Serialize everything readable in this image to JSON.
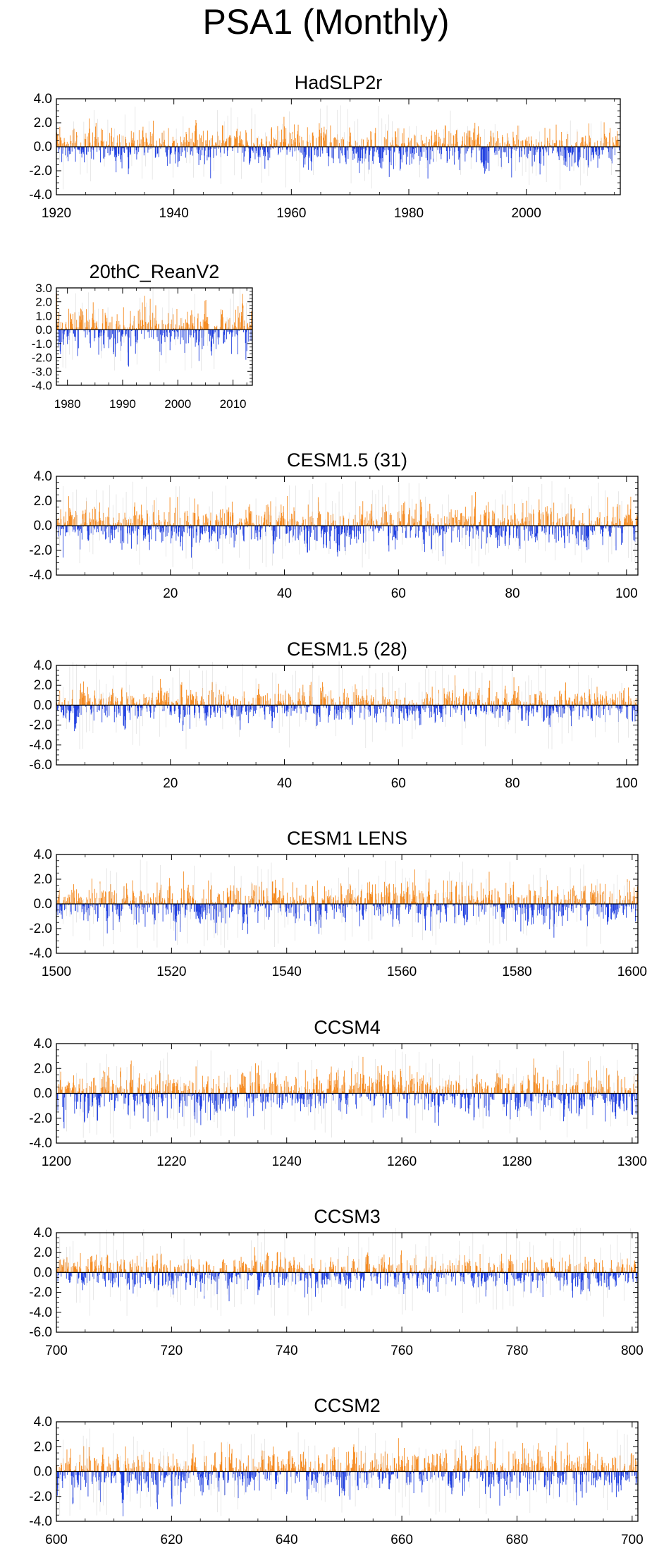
{
  "title": "PSA1 (Monthly)",
  "colors": {
    "positive": "#f58a1f",
    "negative": "#1f3fe0",
    "axis": "#000000",
    "faint": "#d8d8d8"
  },
  "chart_data": [
    {
      "type": "bar",
      "title": "HadSLP2r",
      "xlim": [
        1920,
        2016
      ],
      "ylim": [
        -4.0,
        4.0
      ],
      "xticks": [
        1920,
        1940,
        1960,
        1980,
        2000
      ],
      "yticks": [
        -4.0,
        -2.0,
        0.0,
        2.0,
        4.0
      ],
      "ytick_labels": [
        "-4.0",
        "-2.0",
        "0.0",
        "2.0",
        "4.0"
      ],
      "ymin_extreme": -3.6,
      "ymax_extreme": 2.7,
      "scale": 0.8
    },
    {
      "type": "bar",
      "title": "20thC_ReanV2",
      "xlim": [
        1978,
        2013.5
      ],
      "ylim": [
        -4.0,
        3.0
      ],
      "xticks": [
        1980,
        1990,
        2000,
        2010
      ],
      "yticks": [
        -4.0,
        -3.0,
        -2.0,
        -1.0,
        0.0,
        1.0,
        2.0,
        3.0
      ],
      "ytick_labels": [
        "-4.0",
        "-3.0",
        "-2.0",
        "-1.0",
        "0.0",
        "1.0",
        "2.0",
        "3.0"
      ],
      "ymin_extreme": -3.3,
      "ymax_extreme": 2.6,
      "scale": 0.85
    },
    {
      "type": "bar",
      "title": "CESM1.5 (31)",
      "xlim": [
        0,
        102
      ],
      "ylim": [
        -4.0,
        4.0
      ],
      "xticks": [
        20,
        40,
        60,
        80,
        100
      ],
      "yticks": [
        -4.0,
        -2.0,
        0.0,
        2.0,
        4.0
      ],
      "ytick_labels": [
        "-4.0",
        "-2.0",
        "0.0",
        "2.0",
        "4.0"
      ],
      "ymin_extreme": -3.5,
      "ymax_extreme": 2.8,
      "scale": 0.85
    },
    {
      "type": "bar",
      "title": "CESM1.5 (28)",
      "xlim": [
        0,
        102
      ],
      "ylim": [
        -6.0,
        4.0
      ],
      "xticks": [
        20,
        40,
        60,
        80,
        100
      ],
      "yticks": [
        -6.0,
        -4.0,
        -2.0,
        0.0,
        2.0,
        4.0
      ],
      "ytick_labels": [
        "-6.0",
        "-4.0",
        "-2.0",
        "0.0",
        "2.0",
        "4.0"
      ],
      "ymin_extreme": -4.0,
      "ymax_extreme": 3.0,
      "scale": 0.85
    },
    {
      "type": "bar",
      "title": "CESM1 LENS",
      "xlim": [
        1500,
        1601
      ],
      "ylim": [
        -4.0,
        4.0
      ],
      "xticks": [
        1500,
        1520,
        1540,
        1560,
        1580,
        1600
      ],
      "yticks": [
        -4.0,
        -2.0,
        0.0,
        2.0,
        4.0
      ],
      "ytick_labels": [
        "-4.0",
        "-2.0",
        "0.0",
        "2.0",
        "4.0"
      ],
      "ymin_extreme": -3.6,
      "ymax_extreme": 3.2,
      "scale": 0.85
    },
    {
      "type": "bar",
      "title": "CCSM4",
      "xlim": [
        1200,
        1301
      ],
      "ylim": [
        -4.0,
        4.0
      ],
      "xticks": [
        1200,
        1220,
        1240,
        1260,
        1280,
        1300
      ],
      "yticks": [
        -4.0,
        -2.0,
        0.0,
        2.0,
        4.0
      ],
      "ytick_labels": [
        "-4.0",
        "-2.0",
        "0.0",
        "2.0",
        "4.0"
      ],
      "ymin_extreme": -3.6,
      "ymax_extreme": 3.1,
      "scale": 0.85
    },
    {
      "type": "bar",
      "title": "CCSM3",
      "xlim": [
        700,
        801
      ],
      "ylim": [
        -6.0,
        4.0
      ],
      "xticks": [
        700,
        720,
        740,
        760,
        780,
        800
      ],
      "yticks": [
        -6.0,
        -4.0,
        -2.0,
        0.0,
        2.0,
        4.0
      ],
      "ytick_labels": [
        "-6.0",
        "-4.0",
        "-2.0",
        "0.0",
        "2.0",
        "4.0"
      ],
      "ymin_extreme": -4.0,
      "ymax_extreme": 2.9,
      "scale": 0.85
    },
    {
      "type": "bar",
      "title": "CCSM2",
      "xlim": [
        600,
        701
      ],
      "ylim": [
        -4.0,
        4.0
      ],
      "xticks": [
        600,
        620,
        640,
        660,
        680,
        700
      ],
      "yticks": [
        -4.0,
        -2.0,
        0.0,
        2.0,
        4.0
      ],
      "ytick_labels": [
        "-4.0",
        "-2.0",
        "0.0",
        "2.0",
        "4.0"
      ],
      "ymin_extreme": -3.6,
      "ymax_extreme": 3.0,
      "scale": 0.85
    }
  ]
}
